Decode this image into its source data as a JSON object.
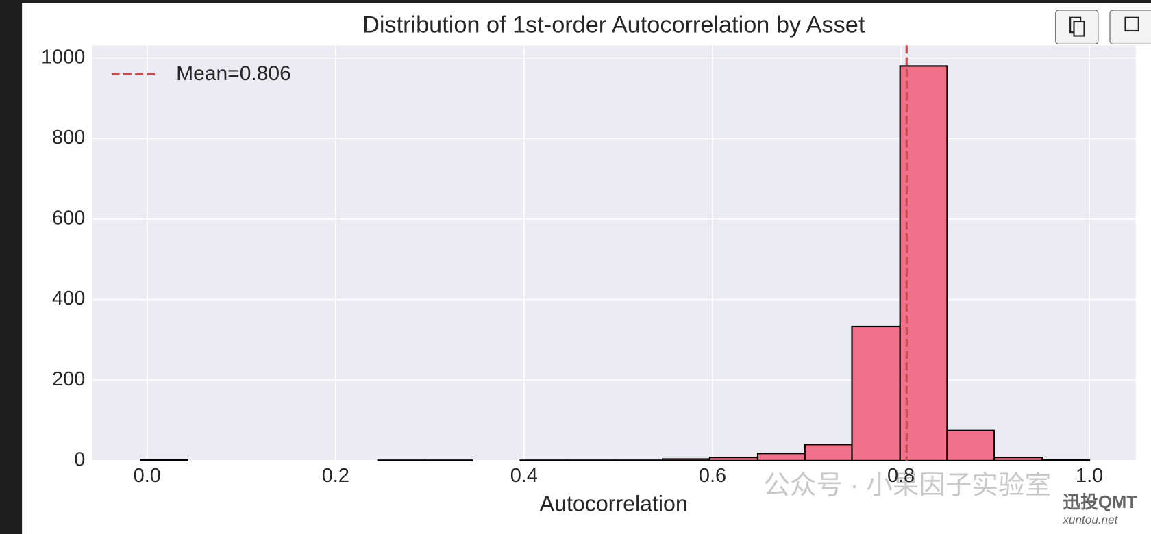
{
  "chart_data": {
    "type": "histogram",
    "title": "Distribution of 1st-order Autocorrelation by Asset",
    "xlabel": "Autocorrelation",
    "bins": [
      -0.007,
      0.043,
      0.094,
      0.144,
      0.194,
      0.245,
      0.295,
      0.345,
      0.396,
      0.446,
      0.497,
      0.547,
      0.597,
      0.648,
      0.698,
      0.748,
      0.799,
      0.849,
      0.899,
      0.95,
      1.0
    ],
    "values": [
      2,
      0,
      0,
      0,
      0,
      1,
      1,
      0,
      1,
      1,
      1,
      4,
      8,
      18,
      40,
      333,
      980,
      75,
      8,
      2
    ],
    "color": "#f07189",
    "edgecolor": "#000000",
    "xlim": [
      -0.058,
      1.049
    ],
    "ylim": [
      0,
      1031
    ],
    "xticks": [
      {
        "value": 0,
        "label": "0.0"
      },
      {
        "value": 0.2,
        "label": "0.2"
      },
      {
        "value": 0.4,
        "label": "0.4"
      },
      {
        "value": 0.6,
        "label": "0.6"
      },
      {
        "value": 0.8,
        "label": "0.8"
      },
      {
        "value": 1,
        "label": "1.0"
      }
    ],
    "yticks": [
      0,
      200,
      400,
      600,
      800,
      1000
    ],
    "grid": true,
    "mean_line": {
      "value": 0.806,
      "label": "Mean=0.806",
      "color": "#c44e52"
    },
    "legend": "upper left"
  },
  "watermark": {
    "text": "公众号 · 小果因子实验室",
    "brand": "迅投QMT",
    "site": "xuntou.net"
  }
}
